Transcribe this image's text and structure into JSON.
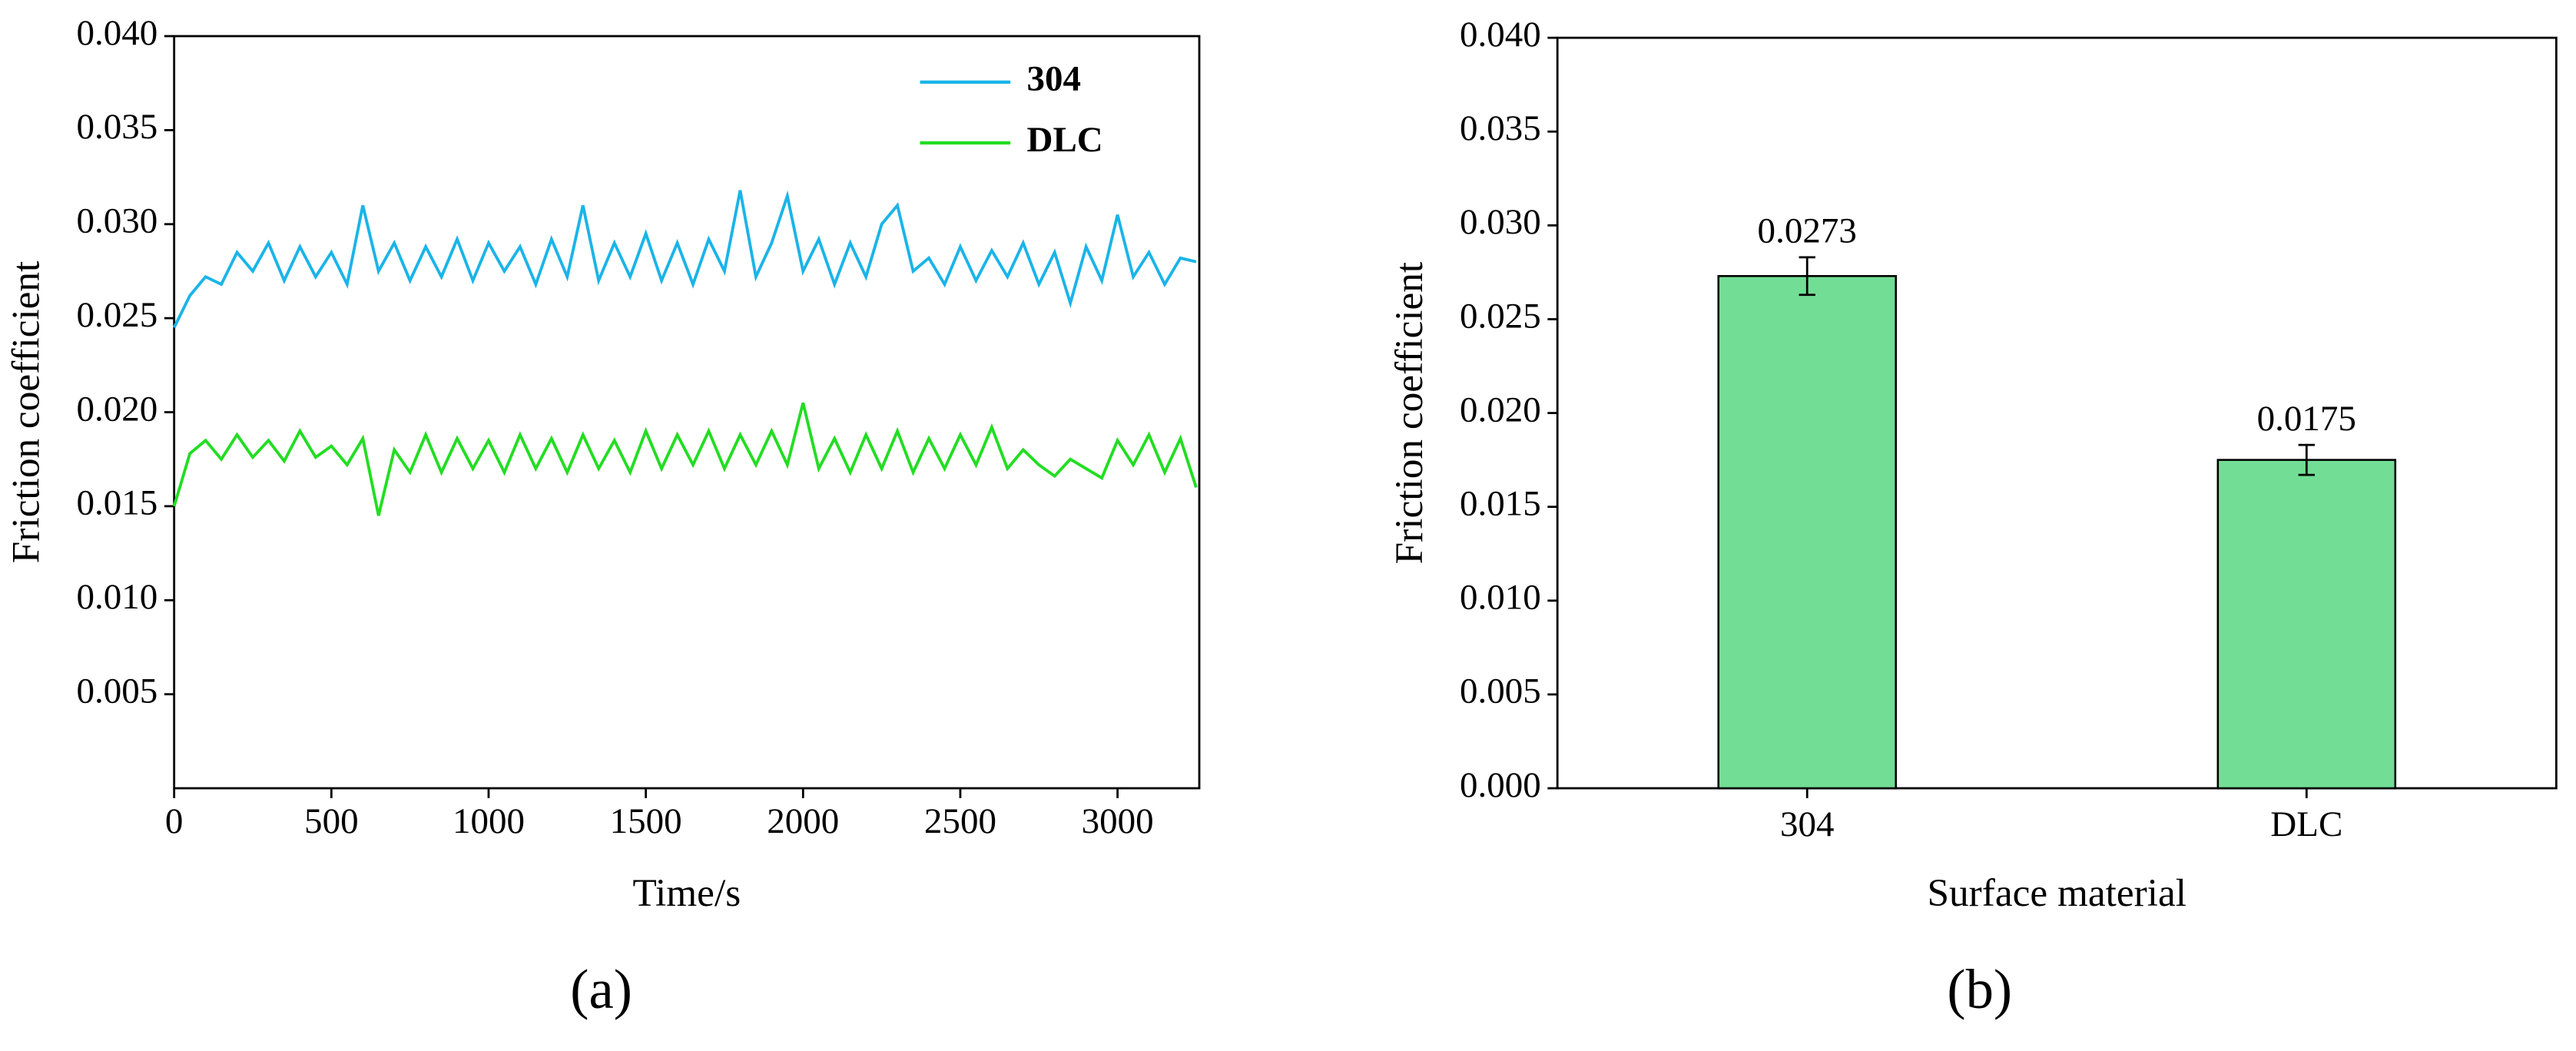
{
  "chart_data": [
    {
      "type": "line",
      "panel_label": "(a)",
      "xlabel": "Time/s",
      "ylabel": "Friction coefficient",
      "xlim": [
        0,
        3260
      ],
      "xticks": [
        0,
        500,
        1000,
        1500,
        2000,
        2500,
        3000
      ],
      "ylim": [
        0,
        0.04
      ],
      "yticks": [
        0.005,
        {
          "value": 0.01,
          "label": "0.010"
        },
        0.015,
        {
          "value": 0.02,
          "label": "0.020"
        },
        0.025,
        {
          "value": 0.03,
          "label": "0.030"
        },
        0.035,
        {
          "value": 0.04,
          "label": "0.040"
        }
      ],
      "legend": "upper right",
      "x": [
        0,
        50,
        100,
        150,
        200,
        250,
        300,
        350,
        400,
        450,
        500,
        550,
        600,
        650,
        700,
        750,
        800,
        850,
        900,
        950,
        1000,
        1050,
        1100,
        1150,
        1200,
        1250,
        1300,
        1350,
        1400,
        1450,
        1500,
        1550,
        1600,
        1650,
        1700,
        1750,
        1800,
        1850,
        1900,
        1950,
        2000,
        2050,
        2100,
        2150,
        2200,
        2250,
        2300,
        2350,
        2400,
        2450,
        2500,
        2550,
        2600,
        2650,
        2700,
        2750,
        2800,
        2850,
        2900,
        2950,
        3000,
        3050,
        3100,
        3150,
        3200,
        3250
      ],
      "series": [
        {
          "name": "304",
          "color": "#1ab4e8",
          "values": [
            0.0245,
            0.0262,
            0.0272,
            0.0268,
            0.0285,
            0.0275,
            0.029,
            0.027,
            0.0288,
            0.0272,
            0.0285,
            0.0268,
            0.031,
            0.0275,
            0.029,
            0.027,
            0.0288,
            0.0272,
            0.0292,
            0.027,
            0.029,
            0.0275,
            0.0288,
            0.0268,
            0.0292,
            0.0272,
            0.031,
            0.027,
            0.029,
            0.0272,
            0.0295,
            0.027,
            0.029,
            0.0268,
            0.0292,
            0.0275,
            0.0318,
            0.0272,
            0.029,
            0.0315,
            0.0275,
            0.0292,
            0.0268,
            0.029,
            0.0272,
            0.03,
            0.031,
            0.0275,
            0.0282,
            0.0268,
            0.0288,
            0.027,
            0.0286,
            0.0272,
            0.029,
            0.0268,
            0.0285,
            0.0258,
            0.0288,
            0.027,
            0.0305,
            0.0272,
            0.0285,
            0.0268,
            0.0282,
            0.028
          ]
        },
        {
          "name": "DLC",
          "color": "#22dd22",
          "values": [
            0.015,
            0.0178,
            0.0185,
            0.0175,
            0.0188,
            0.0176,
            0.0185,
            0.0174,
            0.019,
            0.0176,
            0.0182,
            0.0172,
            0.0186,
            0.0145,
            0.018,
            0.0168,
            0.0188,
            0.0168,
            0.0186,
            0.017,
            0.0185,
            0.0168,
            0.0188,
            0.017,
            0.0186,
            0.0168,
            0.0188,
            0.017,
            0.0185,
            0.0168,
            0.019,
            0.017,
            0.0188,
            0.0172,
            0.019,
            0.017,
            0.0188,
            0.0172,
            0.019,
            0.0172,
            0.0205,
            0.017,
            0.0186,
            0.0168,
            0.0188,
            0.017,
            0.019,
            0.0168,
            0.0186,
            0.017,
            0.0188,
            0.0172,
            0.0192,
            0.017,
            0.018,
            0.0172,
            0.0166,
            0.0175,
            0.017,
            0.0165,
            0.0185,
            0.0172,
            0.0188,
            0.0168,
            0.0186,
            0.016
          ]
        }
      ]
    },
    {
      "type": "bar",
      "panel_label": "(b)",
      "xlabel": "Surface material",
      "ylabel": "Friction coefficient",
      "categories": [
        "304",
        "DLC"
      ],
      "values": [
        0.0273,
        0.0175
      ],
      "errors": [
        0.001,
        0.0008
      ],
      "color": "#72de95",
      "ylim": [
        0,
        0.04
      ],
      "yticks": [
        {
          "value": 0,
          "label": "0.000"
        },
        0.005,
        {
          "value": 0.01,
          "label": "0.010"
        },
        0.015,
        {
          "value": 0.02,
          "label": "0.020"
        },
        0.025,
        {
          "value": 0.03,
          "label": "0.030"
        },
        0.035,
        {
          "value": 0.04,
          "label": "0.040"
        }
      ]
    }
  ]
}
